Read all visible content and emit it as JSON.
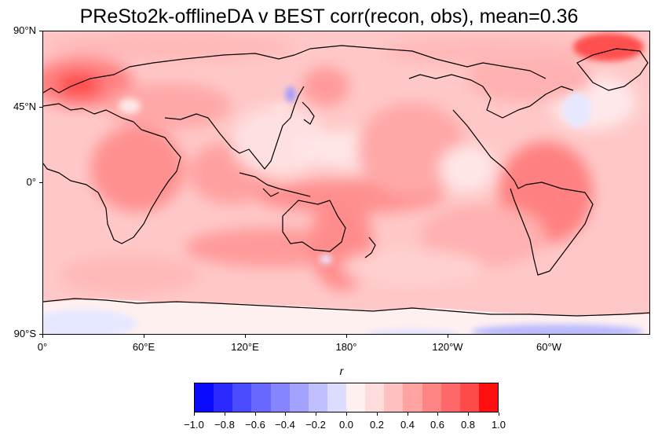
{
  "title": "PReSto2k-offlineDA v BEST corr(recon, obs), mean=0.36",
  "y_axis_labels": [
    "90°N",
    "45°N",
    "0°",
    "90°S"
  ],
  "x_axis_labels": [
    "0°",
    "60°E",
    "120°E",
    "180°",
    "120°W",
    "60°W"
  ],
  "colorbar": {
    "label": "r",
    "tick_labels": [
      "−1.0",
      "−0.8",
      "−0.6",
      "−0.4",
      "−0.2",
      "0.0",
      "0.2",
      "0.4",
      "0.6",
      "0.8",
      "1.0"
    ],
    "colors": [
      "#0a0aff",
      "#2a2aff",
      "#4a4aff",
      "#6868ff",
      "#8585ff",
      "#a3a3ff",
      "#c0c0ff",
      "#dcdcff",
      "#fff0f0",
      "#ffdcdc",
      "#ffc0c0",
      "#ffa3a3",
      "#ff8585",
      "#ff6868",
      "#ff4a4a",
      "#ff1010"
    ]
  },
  "colors": {
    "ocean_base": "#ffc8c8",
    "strong_red": "#ff7070",
    "pale": "#ffe6e6",
    "blue_tint": "#e4e6ff",
    "coast": "#000000"
  }
}
